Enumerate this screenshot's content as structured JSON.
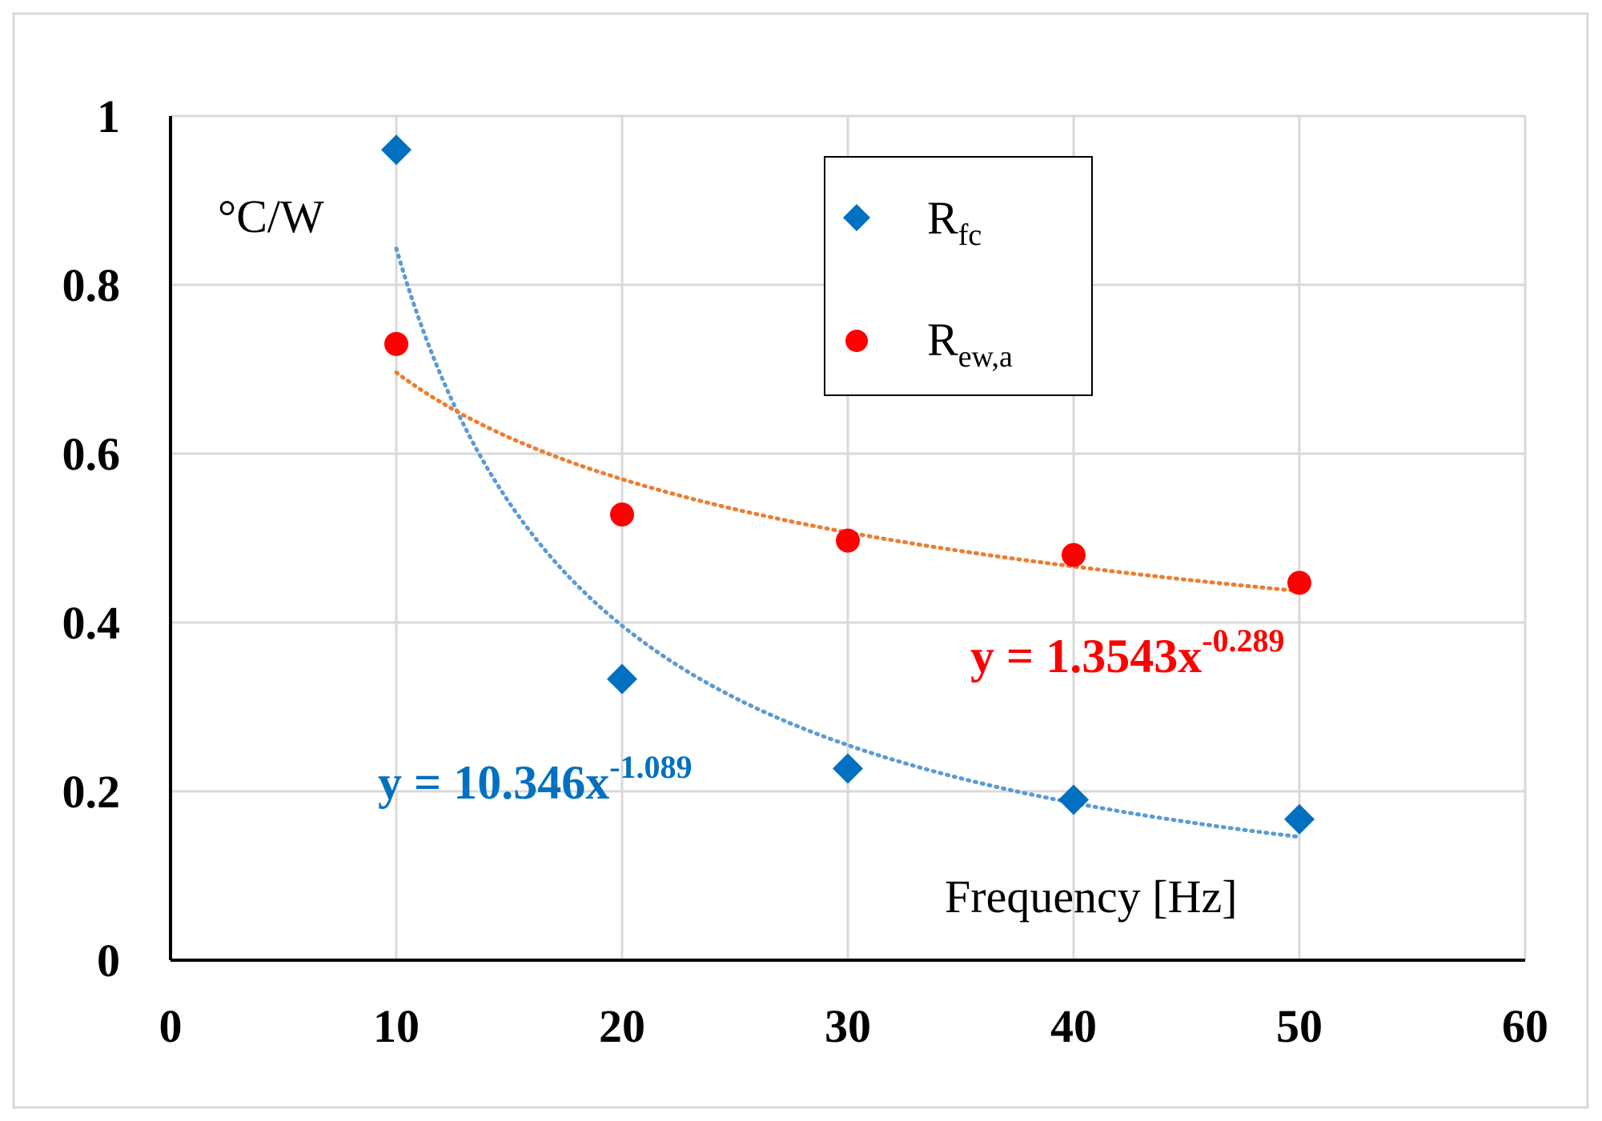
{
  "colors": {
    "rfc": "#0070C0",
    "rew": "#FF0000",
    "rfc_trend": "#5B9BD5",
    "rew_trend": "#ED7D31",
    "grid": "#D9D9D9",
    "axis": "#000000",
    "frame": "#D9D9D9"
  },
  "chart_data": {
    "type": "scatter",
    "title": "",
    "xlabel": "Frequency [Hz]",
    "ylabel": "°C/W",
    "xlim": [
      0,
      60
    ],
    "ylim": [
      0,
      1
    ],
    "x_ticks": [
      0,
      10,
      20,
      30,
      40,
      50,
      60
    ],
    "y_ticks": [
      0,
      0.2,
      0.4,
      0.6,
      0.8,
      1
    ],
    "x_tick_labels": [
      "0",
      "10",
      "20",
      "30",
      "40",
      "50",
      "60"
    ],
    "y_tick_labels": [
      "0",
      "0.2",
      "0.4",
      "0.6",
      "0.8",
      "1"
    ],
    "grid": true,
    "legend_position": "top-right",
    "series": [
      {
        "name": "R_fc",
        "label_main": "R",
        "label_sub": "fc",
        "marker": "diamond",
        "x": [
          10,
          20,
          30,
          40,
          50
        ],
        "y": [
          0.96,
          0.333,
          0.227,
          0.19,
          0.167
        ],
        "trendline": {
          "type": "power",
          "a": 10.346,
          "b": -1.089,
          "equation_main": "y = 10.346x",
          "equation_exp": "-1.089"
        }
      },
      {
        "name": "R_ew,a",
        "label_main": "R",
        "label_sub": "ew,a",
        "marker": "circle",
        "x": [
          10,
          20,
          30,
          40,
          50
        ],
        "y": [
          0.73,
          0.528,
          0.497,
          0.48,
          0.447
        ],
        "trendline": {
          "type": "power",
          "a": 1.3543,
          "b": -0.289,
          "equation_main": "y = 1.3543x",
          "equation_exp": "-0.289"
        }
      }
    ]
  }
}
